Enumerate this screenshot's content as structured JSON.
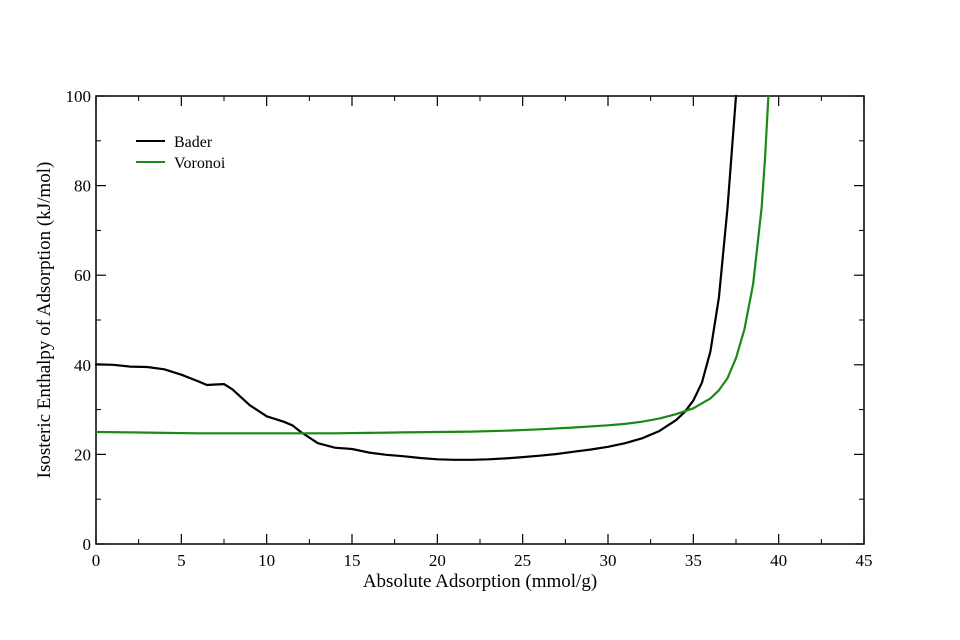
{
  "chart_data": {
    "type": "line",
    "xlabel": "Absolute Adsorption (mmol/g)",
    "ylabel": "Isosteric Enthalpy of Adsorption (kJ/mol)",
    "xlim": [
      0,
      45
    ],
    "ylim": [
      0,
      100
    ],
    "x_ticks": [
      0,
      5,
      10,
      15,
      20,
      25,
      30,
      35,
      40,
      45
    ],
    "y_ticks": [
      0,
      20,
      40,
      60,
      80,
      100
    ],
    "x_tick_labels": [
      "0",
      "5",
      "10",
      "15",
      "20",
      "25",
      "30",
      "35",
      "40",
      "45"
    ],
    "y_tick_labels": [
      "0",
      "20",
      "40",
      "60",
      "80",
      "100"
    ],
    "grid": false,
    "legend_placement": "top-left",
    "series": [
      {
        "name": "Bader",
        "color": "#000000",
        "x": [
          0,
          1,
          2,
          3,
          4,
          5,
          6,
          6.5,
          7,
          7.5,
          8,
          9,
          10,
          11,
          11.5,
          12,
          13,
          14,
          15,
          16,
          17,
          18,
          19,
          20,
          21,
          22,
          23,
          24,
          25,
          26,
          27,
          28,
          29,
          30,
          31,
          32,
          33,
          34,
          34.5,
          35,
          35.5,
          36,
          36.5,
          37,
          37.3,
          37.5
        ],
        "y": [
          40.1,
          40,
          39.6,
          39.5,
          39,
          37.8,
          36.3,
          35.5,
          35.6,
          35.7,
          34.5,
          31,
          28.5,
          27.3,
          26.5,
          25,
          22.5,
          21.5,
          21.2,
          20.4,
          19.9,
          19.6,
          19.2,
          18.9,
          18.8,
          18.8,
          18.9,
          19.1,
          19.4,
          19.7,
          20.1,
          20.6,
          21.1,
          21.7,
          22.5,
          23.6,
          25.2,
          27.7,
          29.5,
          32,
          36,
          43,
          55,
          75,
          90,
          100
        ]
      },
      {
        "name": "Voronoi",
        "color": "#1a8a16",
        "x": [
          0,
          2,
          4,
          6,
          8,
          10,
          12,
          14,
          16,
          18,
          20,
          22,
          24,
          26,
          28,
          30,
          31,
          32,
          33,
          34,
          35,
          36,
          36.5,
          37,
          37.5,
          38,
          38.5,
          39,
          39.2,
          39.4
        ],
        "y": [
          25,
          24.9,
          24.8,
          24.7,
          24.7,
          24.7,
          24.7,
          24.7,
          24.8,
          24.9,
          25,
          25.1,
          25.3,
          25.6,
          26,
          26.5,
          26.8,
          27.3,
          28,
          29,
          30.3,
          32.5,
          34.3,
          37,
          41.5,
          48,
          58,
          75,
          86,
          100
        ]
      }
    ]
  }
}
